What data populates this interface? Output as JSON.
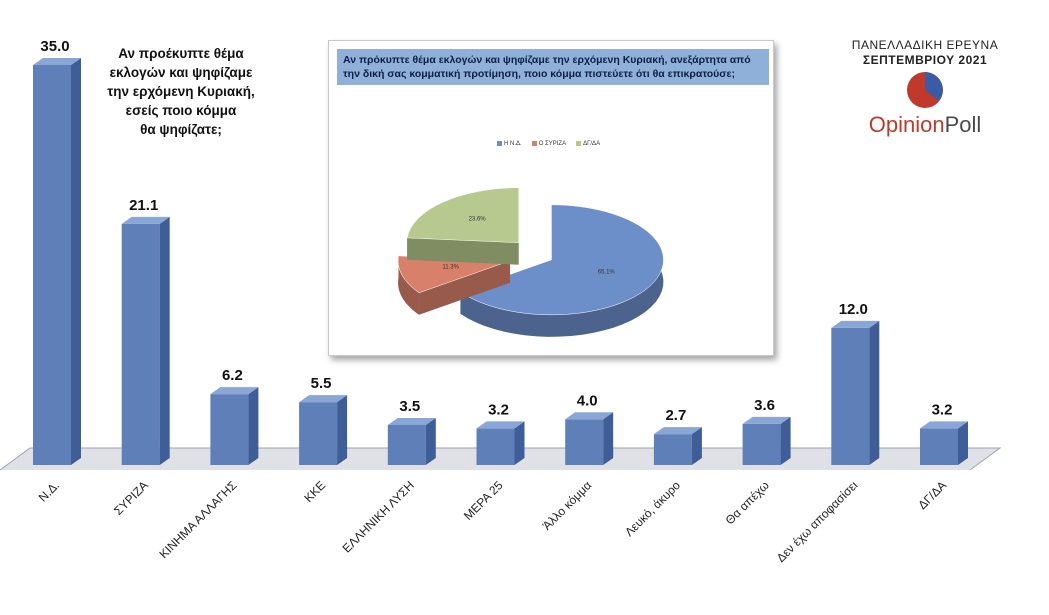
{
  "brand": {
    "survey_title": "ΠΑΝΕΛΛΑΔΙΚΗ ΕΡΕΥΝΑ",
    "survey_date": "ΣΕΠΤΕΜΒΡΙΟΥ 2021",
    "logo_part1": "Opinion",
    "logo_part2": "Poll",
    "logo_colors": [
      "#c0392b",
      "#3b5ba5"
    ]
  },
  "question": "Αν προέκυπτε θέμα\nεκλογών και ψηφίζαμε\nτην ερχόμενη Κυριακή,\nεσείς ποιο κόμμα\nθα ψηφίζατε;",
  "colors": {
    "bar": "#5f7fb9",
    "bar_dark": "#3f5e98",
    "bar_top": "#8aa6d6",
    "floor": "#c4c9d4"
  },
  "chart_data": [
    {
      "type": "bar",
      "title": "",
      "categories": [
        "Ν.Δ.",
        "ΣΥΡΙΖΑ",
        "ΚΙΝΗΜΑ ΑΛΛΑΓΗΣ",
        "ΚΚΕ",
        "ΕΛΛΗΝΙΚΗ ΛΥΣΗ",
        "ΜΕΡΑ 25",
        "Άλλο κόμμα",
        "Λευκό, άκυρο",
        "Θα απέχω",
        "Δεν έχω αποφασίσει",
        "ΔΓ/ΔΑ"
      ],
      "values": [
        35.0,
        21.1,
        6.2,
        5.5,
        3.5,
        3.2,
        4.0,
        2.7,
        3.6,
        12.0,
        3.2
      ],
      "value_labels": [
        "35.0",
        "21.1",
        "6.2",
        "5.5",
        "3.5",
        "3.2",
        "4.0",
        "2.7",
        "3.6",
        "12.0",
        "3.2"
      ],
      "ylim": [
        0,
        35
      ],
      "grid": false,
      "legend": "none"
    },
    {
      "type": "pie",
      "title": "Αν πρόκυπτε θέμα εκλογών και ψηφίζαμε την ερχόμενη Κυριακή, ανεξάρτητα από την δική σας κομματική προτίμηση, ποιο κόμμα πιστεύετε ότι θα επικρατούσε;",
      "labels": [
        "Η Ν.Δ.",
        "Ο ΣΥΡΙΖΑ",
        "ΔΓ/ΔΑ"
      ],
      "values": [
        65.1,
        11.3,
        23.6
      ],
      "value_labels": [
        "65.1%",
        "11.3%",
        "23.6%"
      ],
      "colors": [
        "#6d8fc9",
        "#d9806b",
        "#b7c98e"
      ],
      "legend": "top"
    }
  ]
}
